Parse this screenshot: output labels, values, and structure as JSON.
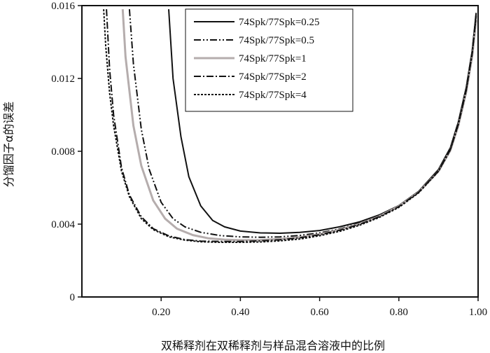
{
  "chart_data": {
    "type": "line",
    "title": "",
    "xlabel": "双稀释剂在双稀释剂与样品混合溶液中的比例",
    "ylabel": "分馏因子α的误差",
    "xlim": [
      0.0,
      1.0
    ],
    "ylim": [
      0,
      0.016
    ],
    "xticks": [
      "0.20",
      "0.40",
      "0.60",
      "0.80",
      "1.00"
    ],
    "xtick_values": [
      0.2,
      0.4,
      0.6,
      0.8,
      1.0
    ],
    "yticks": [
      "0",
      "0.004",
      "0.008",
      "0.012",
      "0.016"
    ],
    "ytick_values": [
      0,
      0.004,
      0.008,
      0.012,
      0.016
    ],
    "grid": false,
    "legend_position": "top-right",
    "series": [
      {
        "name": "74Spk/77Spk=0.25",
        "color": "#111111",
        "dash": "solid",
        "x": [
          0.219,
          0.23,
          0.25,
          0.27,
          0.3,
          0.33,
          0.36,
          0.4,
          0.45,
          0.5,
          0.55,
          0.6,
          0.65,
          0.7,
          0.75,
          0.8,
          0.85,
          0.9,
          0.93,
          0.95,
          0.97,
          0.985,
          0.995
        ],
        "y": [
          0.0158,
          0.012,
          0.0088,
          0.0066,
          0.005,
          0.0042,
          0.00385,
          0.00362,
          0.00352,
          0.0035,
          0.00355,
          0.00365,
          0.00385,
          0.00412,
          0.0045,
          0.00502,
          0.0058,
          0.007,
          0.0082,
          0.0096,
          0.0115,
          0.0135,
          0.0156
        ]
      },
      {
        "name": "74Spk/77Spk=0.5",
        "color": "#111111",
        "dash": "dashdotdot",
        "x": [
          0.12,
          0.13,
          0.15,
          0.17,
          0.2,
          0.23,
          0.26,
          0.3,
          0.35,
          0.4,
          0.45,
          0.5,
          0.55,
          0.6,
          0.65,
          0.7,
          0.75,
          0.8,
          0.85,
          0.9,
          0.93,
          0.95,
          0.97,
          0.985,
          0.995
        ],
        "y": [
          0.0158,
          0.0128,
          0.0092,
          0.007,
          0.0052,
          0.0043,
          0.00385,
          0.00355,
          0.00337,
          0.0033,
          0.00328,
          0.0033,
          0.00338,
          0.00352,
          0.00373,
          0.00405,
          0.00445,
          0.005,
          0.00578,
          0.00698,
          0.00818,
          0.00958,
          0.01148,
          0.01348,
          0.01555
        ]
      },
      {
        "name": "74Spk/77Spk=1",
        "color": "#b5adad",
        "dash": "solid",
        "x": [
          0.103,
          0.11,
          0.13,
          0.15,
          0.18,
          0.21,
          0.24,
          0.28,
          0.32,
          0.36,
          0.4,
          0.45,
          0.5,
          0.55,
          0.6,
          0.65,
          0.7,
          0.75,
          0.8,
          0.85,
          0.9,
          0.93,
          0.95,
          0.97,
          0.985,
          0.995
        ],
        "y": [
          0.0158,
          0.0132,
          0.0094,
          0.0072,
          0.0053,
          0.0043,
          0.00375,
          0.0034,
          0.00322,
          0.00315,
          0.00312,
          0.00313,
          0.00318,
          0.00328,
          0.00345,
          0.00368,
          0.004,
          0.00442,
          0.00498,
          0.00575,
          0.0069,
          0.00805,
          0.0094,
          0.01125,
          0.0132,
          0.0152
        ]
      },
      {
        "name": "74Spk/77Spk=2",
        "color": "#111111",
        "dash": "dashdot",
        "x": [
          0.062,
          0.07,
          0.08,
          0.1,
          0.12,
          0.15,
          0.18,
          0.22,
          0.26,
          0.3,
          0.35,
          0.4,
          0.45,
          0.5,
          0.55,
          0.6,
          0.65,
          0.7,
          0.75,
          0.8,
          0.85,
          0.9,
          0.93,
          0.95,
          0.97,
          0.985,
          0.995
        ],
        "y": [
          0.0158,
          0.0125,
          0.01,
          0.0071,
          0.0056,
          0.0044,
          0.00375,
          0.00335,
          0.00315,
          0.00307,
          0.00305,
          0.00305,
          0.00308,
          0.00314,
          0.00325,
          0.00342,
          0.00366,
          0.00398,
          0.0044,
          0.00496,
          0.00575,
          0.00692,
          0.0081,
          0.00948,
          0.01135,
          0.01335,
          0.01545
        ]
      },
      {
        "name": "74Spk/77Spk=4",
        "color": "#111111",
        "dash": "dotted",
        "x": [
          0.055,
          0.06,
          0.07,
          0.08,
          0.1,
          0.12,
          0.15,
          0.18,
          0.22,
          0.26,
          0.3,
          0.35,
          0.4,
          0.45,
          0.5,
          0.55,
          0.6,
          0.65,
          0.7,
          0.75,
          0.8,
          0.85,
          0.9,
          0.93,
          0.95,
          0.97,
          0.985,
          0.995
        ],
        "y": [
          0.0158,
          0.0138,
          0.0112,
          0.0094,
          0.0069,
          0.0055,
          0.0043,
          0.0037,
          0.0033,
          0.00312,
          0.00303,
          0.003,
          0.003,
          0.00302,
          0.00308,
          0.00318,
          0.00336,
          0.0036,
          0.00393,
          0.00436,
          0.00492,
          0.00572,
          0.0069,
          0.00808,
          0.00945,
          0.01132,
          0.01332,
          0.0154
        ]
      }
    ]
  }
}
